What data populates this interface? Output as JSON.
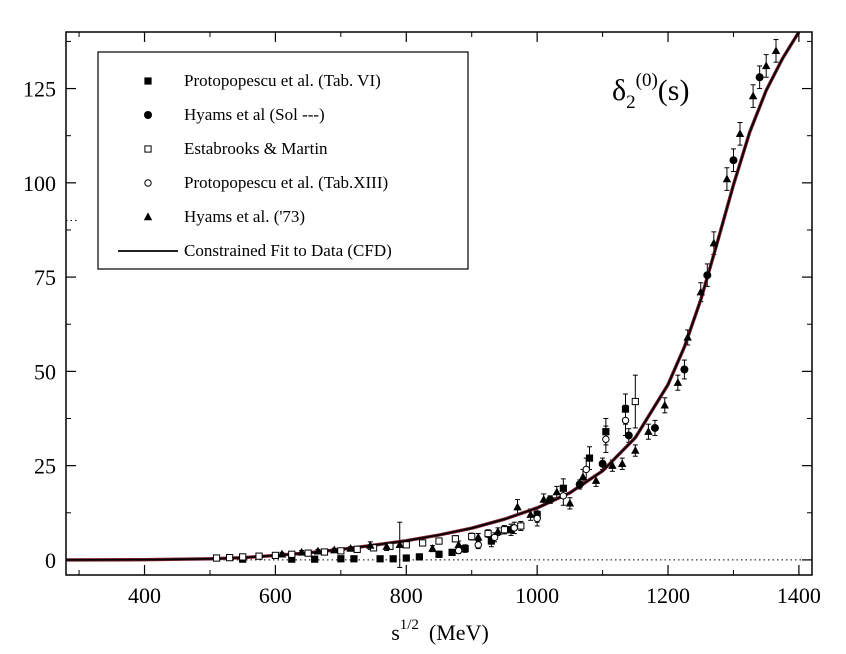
{
  "chart_data": {
    "type": "scatter",
    "title": "",
    "annotation": {
      "main": "δ",
      "sub": "2",
      "sup": "(0)",
      "arg": "(s)"
    },
    "xlabel": {
      "base": "s",
      "sup": "1/2",
      "unit": "(MeV)"
    },
    "ylabel": "",
    "xlim": [
      280,
      1420
    ],
    "ylim": [
      -4,
      140
    ],
    "x_ticks": [
      400,
      600,
      800,
      1000,
      1200,
      1400
    ],
    "y_ticks": [
      0,
      25,
      50,
      75,
      100,
      125
    ],
    "legend_position": "top-left",
    "reference_lines": [
      {
        "name": "zero-line",
        "y": 0
      },
      {
        "name": "ninety-degree-mark",
        "y": 90,
        "x_range": [
          280,
          300
        ]
      }
    ],
    "series": [
      {
        "name": "Protopopescu et al. (Tab. VI)",
        "marker": "filled-square",
        "points": [
          [
            550,
            0.2,
            0.6
          ],
          [
            625,
            0.2,
            0.6
          ],
          [
            660,
            0.2,
            0.6
          ],
          [
            700,
            0.3,
            0.6
          ],
          [
            720,
            0.3,
            0.6
          ],
          [
            760,
            0.3,
            0.6
          ],
          [
            780,
            0.3,
            0.6
          ],
          [
            800,
            0.5,
            0.6
          ],
          [
            820,
            0.8,
            0.8
          ],
          [
            850,
            1.5,
            0.8
          ],
          [
            870,
            2.0,
            0.8
          ],
          [
            890,
            3.0,
            1.0
          ],
          [
            930,
            5.0,
            1.5
          ],
          [
            960,
            8.0,
            1.5
          ],
          [
            1000,
            12.0,
            2.0
          ],
          [
            1040,
            19.0,
            2.5
          ],
          [
            1080,
            27.0,
            3.0
          ],
          [
            1105,
            34.0,
            3.5
          ],
          [
            1135,
            40.0,
            4.0
          ]
        ]
      },
      {
        "name": "Hyams et al (Sol ---)",
        "marker": "filled-circle",
        "points": [
          [
            1020,
            16.0,
            1.0
          ],
          [
            1065,
            20.0,
            1.2
          ],
          [
            1100,
            25.5,
            1.5
          ],
          [
            1140,
            33.0,
            1.8
          ],
          [
            1180,
            35.0,
            2.0
          ],
          [
            1225,
            50.5,
            2.5
          ],
          [
            1260,
            75.5,
            3.0
          ],
          [
            1300,
            106.0,
            3.0
          ],
          [
            1340,
            128.0,
            3.0
          ]
        ]
      },
      {
        "name": "Estabrooks & Martin",
        "marker": "open-square",
        "points": [
          [
            510,
            0.5,
            0.3
          ],
          [
            530,
            0.6,
            0.3
          ],
          [
            550,
            0.8,
            0.3
          ],
          [
            575,
            1.0,
            0.3
          ],
          [
            600,
            1.2,
            0.3
          ],
          [
            625,
            1.5,
            0.4
          ],
          [
            650,
            1.8,
            0.4
          ],
          [
            675,
            2.1,
            0.4
          ],
          [
            700,
            2.4,
            0.5
          ],
          [
            725,
            2.8,
            0.5
          ],
          [
            750,
            3.2,
            0.5
          ],
          [
            775,
            3.6,
            0.6
          ],
          [
            800,
            4.0,
            0.6
          ],
          [
            825,
            4.5,
            0.7
          ],
          [
            850,
            5.0,
            0.8
          ],
          [
            875,
            5.6,
            0.8
          ],
          [
            900,
            6.2,
            0.9
          ],
          [
            925,
            7.0,
            1.0
          ],
          [
            950,
            8.0,
            1.1
          ],
          [
            975,
            9.0,
            1.2
          ],
          [
            1150,
            42.0,
            7.0
          ]
        ]
      },
      {
        "name": "Protopopescu et al. (Tab.XIII)",
        "marker": "open-circle",
        "points": [
          [
            880,
            2.5,
            0.8
          ],
          [
            910,
            4.0,
            1.0
          ],
          [
            935,
            6.0,
            1.2
          ],
          [
            965,
            8.5,
            1.5
          ],
          [
            1000,
            11.0,
            2.0
          ],
          [
            1040,
            17.0,
            2.5
          ],
          [
            1075,
            24.0,
            3.0
          ],
          [
            1105,
            32.0,
            3.5
          ],
          [
            1135,
            37.0,
            4.0
          ]
        ]
      },
      {
        "name": "Hyams et al. ('73)",
        "marker": "filled-triangle",
        "points": [
          [
            610,
            1.5,
            0.5
          ],
          [
            640,
            2.0,
            0.5
          ],
          [
            665,
            2.3,
            0.5
          ],
          [
            690,
            2.6,
            0.5
          ],
          [
            715,
            3.0,
            0.5
          ],
          [
            745,
            3.8,
            1.0
          ],
          [
            770,
            3.5,
            1.0
          ],
          [
            790,
            4.0,
            6.0
          ],
          [
            840,
            3.0,
            0.8
          ],
          [
            880,
            4.0,
            1.0
          ],
          [
            910,
            6.0,
            1.0
          ],
          [
            940,
            7.5,
            1.0
          ],
          [
            970,
            14.0,
            2.0
          ],
          [
            990,
            12.0,
            1.5
          ],
          [
            1010,
            16.0,
            1.5
          ],
          [
            1030,
            18.0,
            1.5
          ],
          [
            1050,
            15.0,
            1.5
          ],
          [
            1070,
            22.0,
            2.0
          ],
          [
            1090,
            21.0,
            1.5
          ],
          [
            1115,
            25.0,
            1.5
          ],
          [
            1130,
            25.5,
            1.5
          ],
          [
            1150,
            29.0,
            1.5
          ],
          [
            1170,
            34.0,
            2.0
          ],
          [
            1195,
            41.0,
            2.0
          ],
          [
            1215,
            47.0,
            2.0
          ],
          [
            1230,
            59.0,
            2.0
          ],
          [
            1250,
            71.0,
            2.5
          ],
          [
            1270,
            84.0,
            3.0
          ],
          [
            1290,
            101.0,
            3.0
          ],
          [
            1310,
            113.0,
            3.0
          ],
          [
            1330,
            123.0,
            3.0
          ],
          [
            1350,
            131.0,
            3.0
          ],
          [
            1365,
            135.0,
            3.0
          ]
        ]
      },
      {
        "name": "Constrained Fit to Data (CFD)",
        "marker": "line",
        "points": [
          [
            280,
            0.0
          ],
          [
            400,
            0.05
          ],
          [
            500,
            0.3
          ],
          [
            550,
            0.6
          ],
          [
            600,
            1.2
          ],
          [
            650,
            1.9
          ],
          [
            700,
            2.8
          ],
          [
            750,
            3.9
          ],
          [
            800,
            5.1
          ],
          [
            850,
            6.6
          ],
          [
            900,
            8.4
          ],
          [
            950,
            10.8
          ],
          [
            1000,
            13.8
          ],
          [
            1050,
            17.8
          ],
          [
            1100,
            23.6
          ],
          [
            1150,
            32.4
          ],
          [
            1200,
            46.5
          ],
          [
            1225,
            56.5
          ],
          [
            1250,
            69.0
          ],
          [
            1275,
            84.0
          ],
          [
            1300,
            99.5
          ],
          [
            1325,
            113.5
          ],
          [
            1350,
            124.5
          ],
          [
            1375,
            133.0
          ],
          [
            1400,
            140.0
          ]
        ]
      }
    ]
  }
}
